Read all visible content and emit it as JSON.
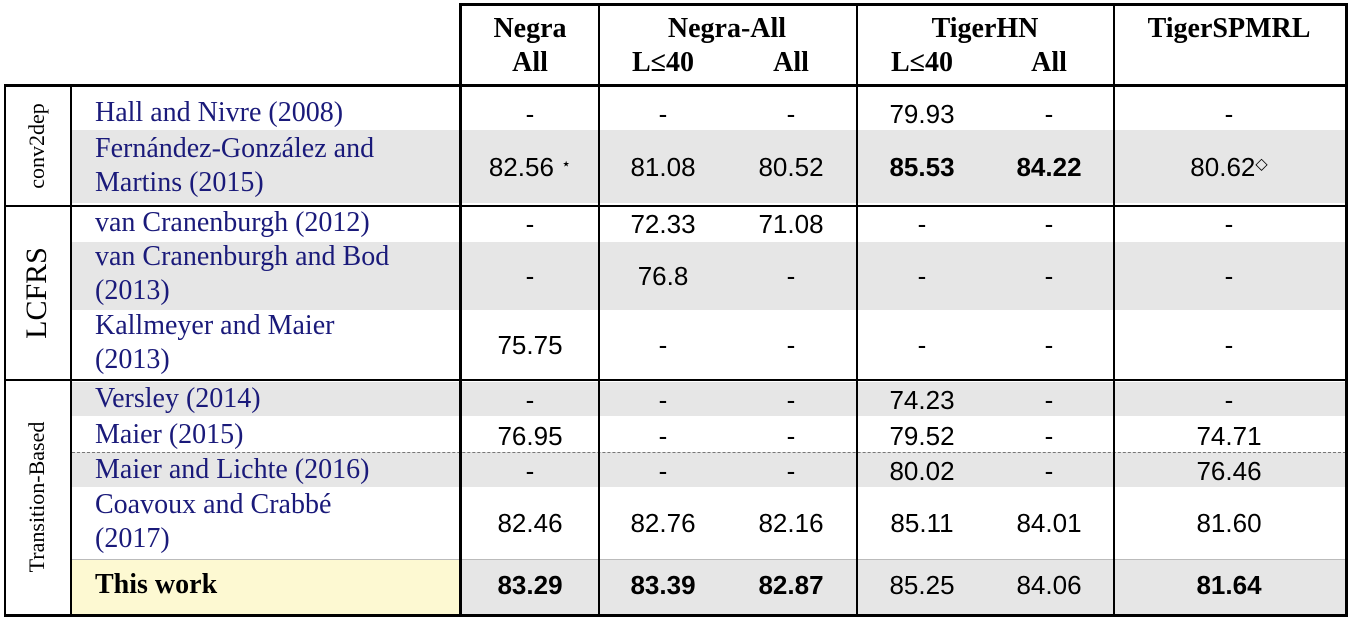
{
  "header": {
    "cols": [
      {
        "top": "Negra",
        "subs": [
          "All"
        ]
      },
      {
        "top": "Negra-All",
        "subs": [
          "L≤40",
          "All"
        ]
      },
      {
        "top": "TigerHN",
        "subs": [
          "L≤40",
          "All"
        ]
      },
      {
        "top": "TigerSPMRL",
        "subs": []
      }
    ]
  },
  "groups": [
    {
      "label": "conv2dep"
    },
    {
      "label": "LCFRS"
    },
    {
      "label": "Transition-Based"
    }
  ],
  "rows": [
    {
      "name": [
        "Hall and Nivre (2008)"
      ],
      "values": [
        "-",
        "-",
        "-",
        "79.93",
        "-",
        "-"
      ]
    },
    {
      "name": [
        "Fernández-González and",
        "Martins (2015)"
      ],
      "values": [
        "82.56",
        "81.08",
        "80.52",
        "85.53",
        "84.22",
        "80.62"
      ],
      "marks": [
        "⋆",
        "",
        "",
        "",
        "",
        "◇"
      ]
    },
    {
      "name": [
        "van Cranenburgh (2012)"
      ],
      "values": [
        "-",
        "72.33",
        "71.08",
        "-",
        "-",
        "-"
      ]
    },
    {
      "name": [
        "van Cranenburgh and Bod",
        "(2013)"
      ],
      "values": [
        "-",
        "76.8",
        "-",
        "-",
        "-",
        "-"
      ]
    },
    {
      "name": [
        "Kallmeyer and Maier",
        "(2013)"
      ],
      "values": [
        "75.75",
        "-",
        "-",
        "-",
        "-",
        "-"
      ]
    },
    {
      "name": [
        "Versley (2014)"
      ],
      "values": [
        "-",
        "-",
        "-",
        "74.23",
        "-",
        "-"
      ]
    },
    {
      "name": [
        "Maier (2015)"
      ],
      "values": [
        "76.95",
        "-",
        "-",
        "79.52",
        "-",
        "74.71"
      ]
    },
    {
      "name": [
        "Maier and Lichte (2016)"
      ],
      "values": [
        "-",
        "-",
        "-",
        "80.02",
        "-",
        "76.46"
      ]
    },
    {
      "name": [
        "Coavoux and Crabbé",
        "(2017)"
      ],
      "values": [
        "82.46",
        "82.76",
        "82.16",
        "85.11",
        "84.01",
        "81.60"
      ]
    },
    {
      "name": [
        "This work"
      ],
      "values": [
        "83.29",
        "83.39",
        "82.87",
        "85.25",
        "84.06",
        "81.64"
      ]
    }
  ],
  "colors": {
    "row_shade": "#e6e6e6",
    "highlight": "#fdf9d2",
    "citation": "#1a1a7a"
  }
}
